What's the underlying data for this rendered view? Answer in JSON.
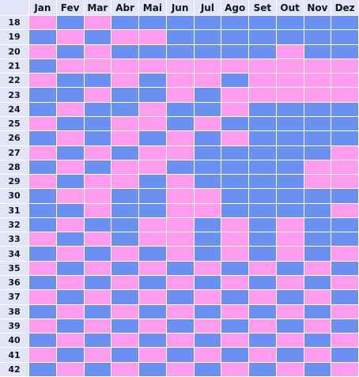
{
  "colors": {
    "blue": "#6a90f2",
    "pink": "#ff9cee",
    "header_bg": "#e4e4f8"
  },
  "chart_data": {
    "type": "heatmap",
    "columns": [
      "Jan",
      "Fev",
      "Mar",
      "Abr",
      "Mai",
      "Jun",
      "Jul",
      "Ago",
      "Set",
      "Out",
      "Nov",
      "Dez"
    ],
    "rows": [
      "18",
      "19",
      "20",
      "21",
      "22",
      "23",
      "24",
      "25",
      "26",
      "27",
      "28",
      "29",
      "30",
      "31",
      "32",
      "33",
      "34",
      "35",
      "36",
      "37",
      "38",
      "39",
      "40",
      "41",
      "42"
    ],
    "legend_values": {
      "B": "blue",
      "P": "pink"
    },
    "grid": [
      [
        "P",
        "B",
        "P",
        "B",
        "B",
        "B",
        "B",
        "B",
        "B",
        "B",
        "B",
        "B"
      ],
      [
        "B",
        "P",
        "B",
        "P",
        "P",
        "B",
        "B",
        "B",
        "B",
        "B",
        "B",
        "B"
      ],
      [
        "P",
        "B",
        "P",
        "B",
        "B",
        "B",
        "B",
        "B",
        "B",
        "P",
        "B",
        "B"
      ],
      [
        "B",
        "P",
        "P",
        "P",
        "P",
        "P",
        "P",
        "P",
        "P",
        "P",
        "P",
        "P"
      ],
      [
        "P",
        "B",
        "B",
        "P",
        "B",
        "P",
        "P",
        "B",
        "P",
        "P",
        "P",
        "P"
      ],
      [
        "B",
        "B",
        "P",
        "B",
        "B",
        "P",
        "B",
        "P",
        "P",
        "P",
        "P",
        "P"
      ],
      [
        "B",
        "P",
        "B",
        "B",
        "P",
        "B",
        "B",
        "P",
        "B",
        "B",
        "B",
        "B"
      ],
      [
        "P",
        "B",
        "B",
        "P",
        "P",
        "B",
        "P",
        "B",
        "B",
        "B",
        "B",
        "B"
      ],
      [
        "B",
        "P",
        "B",
        "P",
        "B",
        "P",
        "B",
        "P",
        "B",
        "B",
        "B",
        "B"
      ],
      [
        "P",
        "B",
        "P",
        "B",
        "P",
        "P",
        "B",
        "B",
        "B",
        "B",
        "B",
        "P"
      ],
      [
        "B",
        "P",
        "B",
        "P",
        "P",
        "B",
        "B",
        "B",
        "B",
        "B",
        "P",
        "P"
      ],
      [
        "P",
        "B",
        "P",
        "P",
        "B",
        "P",
        "B",
        "B",
        "B",
        "B",
        "P",
        "P"
      ],
      [
        "B",
        "P",
        "P",
        "B",
        "B",
        "P",
        "P",
        "B",
        "B",
        "B",
        "B",
        "B"
      ],
      [
        "B",
        "B",
        "P",
        "B",
        "B",
        "P",
        "P",
        "B",
        "B",
        "B",
        "B",
        "P"
      ],
      [
        "B",
        "P",
        "B",
        "B",
        "P",
        "P",
        "B",
        "P",
        "B",
        "P",
        "B",
        "B"
      ],
      [
        "P",
        "B",
        "P",
        "B",
        "P",
        "P",
        "B",
        "P",
        "B",
        "P",
        "B",
        "B"
      ],
      [
        "B",
        "P",
        "B",
        "P",
        "B",
        "P",
        "B",
        "P",
        "B",
        "P",
        "B",
        "P"
      ],
      [
        "P",
        "B",
        "P",
        "B",
        "P",
        "B",
        "P",
        "B",
        "P",
        "B",
        "P",
        "B"
      ],
      [
        "B",
        "P",
        "B",
        "P",
        "B",
        "P",
        "B",
        "P",
        "B",
        "P",
        "B",
        "P"
      ],
      [
        "P",
        "B",
        "P",
        "B",
        "P",
        "B",
        "P",
        "B",
        "P",
        "B",
        "P",
        "B"
      ],
      [
        "B",
        "P",
        "B",
        "P",
        "B",
        "P",
        "B",
        "P",
        "B",
        "P",
        "B",
        "P"
      ],
      [
        "P",
        "B",
        "P",
        "B",
        "P",
        "B",
        "P",
        "B",
        "P",
        "B",
        "P",
        "B"
      ],
      [
        "B",
        "P",
        "B",
        "P",
        "B",
        "P",
        "B",
        "P",
        "B",
        "P",
        "B",
        "P"
      ],
      [
        "P",
        "B",
        "P",
        "B",
        "P",
        "B",
        "P",
        "B",
        "P",
        "B",
        "P",
        "B"
      ],
      [
        "B",
        "P",
        "B",
        "P",
        "B",
        "P",
        "B",
        "P",
        "B",
        "P",
        "B",
        "P"
      ]
    ]
  }
}
